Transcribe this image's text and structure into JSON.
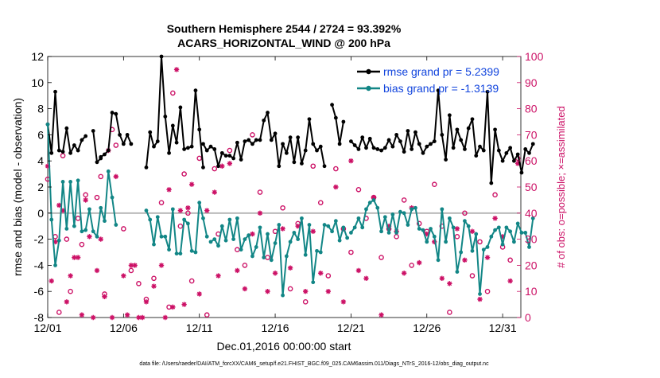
{
  "chart_data": {
    "type": "line",
    "title": "Southern Hemisphere 2544 / 2724 = 93.392%",
    "subtitle": "ACARS_HORIZONTAL_WIND @ 200 hPa",
    "xlabel": "Dec.01,2016 00:00:00 start",
    "ylabel": "rmse and bias (model - observation)",
    "y2label": "# of obs: o=possible; ×=assimilated",
    "footnote": "data file: /Users/raeder/DAI/ATM_forcXX/CAM6_setup/f.e21.FHIST_BGC.f09_025.CAM6assim.011/Diags_NTrS_2016-12/obs_diag_output.nc",
    "xlim": [
      0,
      31.2
    ],
    "ylim": [
      -8,
      12
    ],
    "y2lim": [
      0,
      100
    ],
    "x_ticks": [
      0,
      5,
      10,
      15,
      20,
      25,
      30
    ],
    "x_tick_labels": [
      "12/01",
      "12/06",
      "12/11",
      "12/16",
      "12/21",
      "12/26",
      "12/31"
    ],
    "y_ticks": [
      -8,
      -6,
      -4,
      -2,
      0,
      2,
      4,
      6,
      8,
      10,
      12
    ],
    "y_tick_labels": [
      "-8",
      "-6",
      "-4",
      "-2",
      "0",
      "2",
      "4",
      "6",
      "8",
      "10",
      "12"
    ],
    "y2_ticks": [
      0,
      10,
      20,
      30,
      40,
      50,
      60,
      70,
      80,
      90,
      100
    ],
    "y2_tick_labels": [
      "0",
      "10",
      "20",
      "30",
      "40",
      "50",
      "60",
      "70",
      "80",
      "90",
      "100"
    ],
    "zero_line": 0,
    "legend_position": "top-right",
    "colors": {
      "rmse": "#000000",
      "bias": "#128686",
      "obs": "#cc1166",
      "legend_text": "#1144dd",
      "zero": "#b3b3b3"
    },
    "series": [
      {
        "name": "rmse grand pr = 5.2399",
        "axis": "left",
        "segments": [
          {
            "x0": 0.0,
            "values": [
              6.8,
              4.6,
              9.3,
              4.8,
              4.7,
              6.5,
              4.6,
              5.2,
              4.8,
              5.6,
              5.9
            ]
          },
          {
            "x0": 3.0,
            "values": [
              6.3,
              3.9,
              4.2
            ]
          },
          {
            "x0": 3.5,
            "values": [
              4.3,
              4.5,
              4.8,
              7.7,
              7.6,
              6.0,
              5.3,
              6.0,
              5.3
            ]
          },
          {
            "x0": 6.5,
            "values": [
              3.5,
              6.2,
              5.1,
              5.5,
              12.0,
              7.4,
              4.6,
              6.7,
              5.4,
              8.1,
              4.9,
              5.0,
              5.1,
              9.4,
              6.4,
              3.5
            ]
          },
          {
            "x0": 10.25,
            "values": [
              5.3,
              4.8,
              5.1,
              4.9,
              3.6,
              4.6,
              4.4,
              4.4,
              4.2,
              5.4,
              4.1,
              5.5,
              5.6,
              5.3,
              5.6,
              5.6,
              7.1,
              7.7,
              5.6,
              6.1,
              3.6,
              5.3,
              4.6,
              5.8,
              3.9,
              5.8,
              3.8,
              4.8,
              7.2,
              5.3,
              4.8,
              5.1,
              3.6
            ]
          },
          {
            "x0": 18.75,
            "values": [
              8.3,
              7.3,
              5.3,
              7.0
            ]
          },
          {
            "x0": 20.0,
            "values": [
              5.5,
              5.2,
              4.9,
              5.8,
              5.0,
              5.7,
              5.0,
              4.9,
              4.8,
              5.0,
              5.6,
              5.1,
              6.0,
              5.5,
              4.7,
              6.3,
              4.9,
              6.2,
              5.3,
              4.6,
              5.1,
              5.3,
              5.5,
              9.4,
              6.0,
              4.1,
              7.5,
              5.0,
              6.4,
              5.6,
              4.9,
              6.5,
              7.2,
              4.4,
              5.1,
              4.8,
              9.3,
              2.3,
              6.4,
              4.8,
              4.0,
              4.6,
              5.0,
              4.0,
              4.5,
              3.1,
              4.9,
              4.6,
              5.3
            ]
          }
        ]
      },
      {
        "name": "bias grand pr = -1.3139",
        "axis": "left",
        "segments": [
          {
            "x0": 0.0,
            "values": [
              6.8,
              -0.5,
              -4.0,
              -2.1,
              2.4,
              -1.2,
              2.4,
              -1.0,
              2.5,
              -1.4,
              -1.3,
              0.3,
              -1.4,
              -1.8,
              0.4,
              -0.6,
              3.2,
              1.2,
              -0.9
            ]
          },
          {
            "x0": 6.5,
            "values": [
              0.2,
              -0.5,
              -2.4,
              -0.3,
              -1.8,
              -1.8,
              -2.8,
              0.3,
              -3.1,
              -3.1,
              -0.5,
              -0.8,
              -2.9,
              -3.0,
              0.8,
              -0.4,
              -1.8
            ]
          },
          {
            "x0": 10.75,
            "values": [
              -2.2,
              -2.0,
              -2.5,
              -1.0,
              -2.1,
              -0.5,
              -2.0,
              -0.4,
              -2.8,
              -2.0,
              -1.7,
              -3.3,
              -2.6,
              -1.1,
              -3.4,
              -1.6,
              -3.6,
              -2.3,
              -0.9,
              -6.3,
              -3.3,
              -2.2,
              -1.5,
              -2.0,
              -0.4,
              -3.2,
              -0.9,
              -5.3,
              -2.9,
              -3.0,
              -0.9,
              -1.0,
              -1.4,
              -0.6,
              -2.1,
              -1.1,
              -1.9
            ]
          },
          {
            "x0": 20.0,
            "values": [
              -1.5,
              -1.1,
              -0.4,
              -1.1,
              0.3,
              0.8,
              1.0,
              0.4,
              -1.4,
              -0.3,
              -1.5,
              -0.1,
              -1.5,
              0.1,
              0.0,
              -0.9,
              0.3,
              0.4,
              -1.2,
              -1.3,
              -2.2,
              -1.2,
              -1.8,
              -3.6,
              0.3,
              -2.2,
              -0.4,
              -1.1,
              -4.5,
              -3.0,
              -0.6,
              -1.0,
              -2.9,
              -1.6,
              -6.2,
              -2.8,
              -2.6,
              -1.8,
              -1.3,
              -1.1,
              -2.4,
              -1.1,
              -1.4,
              -2.2,
              -0.8,
              -1.5,
              -1.5,
              -2.6,
              -0.4
            ]
          }
        ]
      },
      {
        "name": "obs possible",
        "axis": "right",
        "marker": "o",
        "points": [
          [
            0,
            53
          ],
          [
            0.5,
            31
          ],
          [
            0.75,
            2
          ],
          [
            1,
            62
          ],
          [
            1.25,
            30
          ],
          [
            1.5,
            10
          ],
          [
            2,
            38
          ],
          [
            2.25,
            28
          ],
          [
            2.5,
            47
          ],
          [
            3.25,
            46
          ],
          [
            3.5,
            54
          ],
          [
            3.75,
            9
          ],
          [
            4.25,
            72
          ],
          [
            4.5,
            66
          ],
          [
            5,
            34
          ],
          [
            5.5,
            18
          ],
          [
            6,
            13
          ],
          [
            6.5,
            7
          ],
          [
            7,
            15
          ],
          [
            7.5,
            44
          ],
          [
            8,
            4
          ],
          [
            8.25,
            86
          ],
          [
            8.75,
            35
          ],
          [
            9,
            55
          ],
          [
            9.25,
            40
          ],
          [
            9.5,
            14
          ],
          [
            10,
            61
          ],
          [
            10.5,
            1
          ],
          [
            11,
            57
          ],
          [
            11.25,
            32
          ],
          [
            12,
            64
          ],
          [
            12.5,
            26
          ],
          [
            13,
            20
          ],
          [
            13.5,
            70
          ],
          [
            14,
            48
          ],
          [
            14.5,
            23
          ],
          [
            15,
            33
          ],
          [
            15.5,
            42
          ],
          [
            16,
            11
          ],
          [
            16.5,
            36
          ],
          [
            17,
            6
          ],
          [
            17.5,
            58
          ],
          [
            18,
            44
          ],
          [
            18.5,
            16
          ],
          [
            19,
            57
          ],
          [
            19.5,
            34
          ],
          [
            20,
            25
          ],
          [
            20.5,
            49
          ],
          [
            21,
            38
          ],
          [
            21.5,
            46
          ],
          [
            22,
            23
          ],
          [
            22.5,
            34
          ],
          [
            23,
            31
          ],
          [
            23.5,
            45
          ],
          [
            24,
            20
          ],
          [
            24.5,
            36
          ],
          [
            25,
            33
          ],
          [
            25.5,
            51
          ],
          [
            26,
            35
          ],
          [
            26.5,
            2
          ],
          [
            27,
            31
          ],
          [
            27.5,
            40
          ],
          [
            28,
            16
          ],
          [
            28.5,
            29
          ],
          [
            29,
            10
          ],
          [
            29.5,
            47
          ],
          [
            30,
            27
          ],
          [
            30.5,
            22
          ],
          [
            31,
            61
          ]
        ]
      },
      {
        "name": "obs assimilated",
        "axis": "right",
        "marker": "*",
        "points": [
          [
            0,
            58
          ],
          [
            0.25,
            14
          ],
          [
            0.5,
            29
          ],
          [
            0.75,
            43
          ],
          [
            1,
            41
          ],
          [
            1.25,
            6
          ],
          [
            1.5,
            16
          ],
          [
            1.75,
            23
          ],
          [
            2,
            23
          ],
          [
            2.25,
            1
          ],
          [
            2.5,
            45
          ],
          [
            2.75,
            31
          ],
          [
            3,
            0
          ],
          [
            3.25,
            18
          ],
          [
            3.5,
            30
          ],
          [
            3.75,
            8
          ],
          [
            4,
            64
          ],
          [
            4.25,
            0
          ],
          [
            4.5,
            54
          ],
          [
            5,
            16
          ],
          [
            5.25,
            1
          ],
          [
            5.5,
            20
          ],
          [
            5.75,
            20
          ],
          [
            6,
            0
          ],
          [
            6.25,
            0
          ],
          [
            6.5,
            6
          ],
          [
            7,
            12
          ],
          [
            7.5,
            20
          ],
          [
            7.75,
            0
          ],
          [
            8,
            49
          ],
          [
            8.25,
            4
          ],
          [
            8.5,
            95
          ],
          [
            8.75,
            41
          ],
          [
            9,
            5
          ],
          [
            9.25,
            42
          ],
          [
            9.5,
            51
          ],
          [
            10,
            9
          ],
          [
            10.5,
            41
          ],
          [
            11,
            48
          ],
          [
            11.25,
            16
          ],
          [
            11.5,
            58
          ],
          [
            12,
            59
          ],
          [
            12.5,
            18
          ],
          [
            13,
            11
          ],
          [
            13.5,
            32
          ],
          [
            14,
            40
          ],
          [
            14.5,
            10
          ],
          [
            15,
            17
          ],
          [
            15.5,
            34
          ],
          [
            16,
            19
          ],
          [
            16.5,
            35
          ],
          [
            17,
            10
          ],
          [
            17.5,
            33
          ],
          [
            18,
            17
          ],
          [
            18.5,
            10
          ],
          [
            19,
            50
          ],
          [
            19.5,
            6
          ],
          [
            20,
            60
          ],
          [
            20.5,
            18
          ],
          [
            21,
            15
          ],
          [
            21.5,
            46
          ],
          [
            22,
            1
          ],
          [
            22.5,
            35
          ],
          [
            23,
            33
          ],
          [
            23.5,
            17
          ],
          [
            24,
            42
          ],
          [
            24.5,
            21
          ],
          [
            25,
            32
          ],
          [
            25.5,
            29
          ],
          [
            26,
            15
          ],
          [
            26.5,
            13
          ],
          [
            27,
            34
          ],
          [
            27.5,
            22
          ],
          [
            28,
            33
          ],
          [
            28.5,
            7
          ],
          [
            29,
            23
          ],
          [
            29.5,
            38
          ],
          [
            30,
            31
          ],
          [
            30.5,
            14
          ],
          [
            31,
            59
          ]
        ]
      }
    ]
  }
}
